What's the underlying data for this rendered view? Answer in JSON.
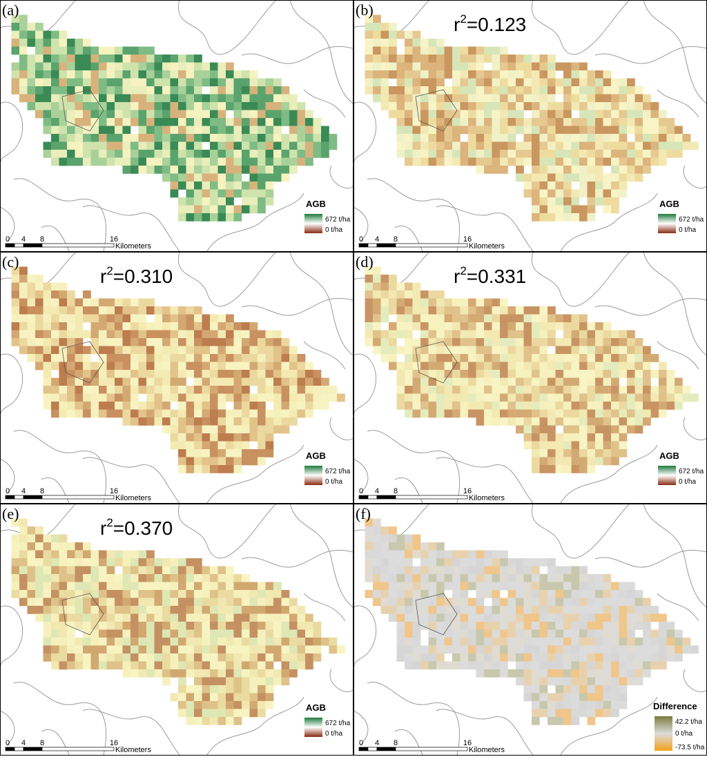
{
  "panels": [
    {
      "label": "(a)",
      "palette": [
        "#f6f3c0",
        "#e9eebb",
        "#cfe3ad",
        "#a9d19a",
        "#7fbb84",
        "#5aa36c",
        "#3a8a55",
        "#d8b27c"
      ],
      "legend": {
        "title": "AGB",
        "max": "672 t/ha",
        "min": "0 t/ha",
        "colors": [
          "#1f7a3d",
          "#ffffff",
          "#8a2a12"
        ]
      }
    },
    {
      "label": "(b)",
      "r_text": "r",
      "r_sup": "2",
      "r_value": "=0.123",
      "palette": [
        "#f8f4c6",
        "#f3e9b4",
        "#eedc9f",
        "#e6c990",
        "#dcb47c",
        "#f1f1c8",
        "#d7e6b8",
        "#c9975f"
      ],
      "legend": {
        "title": "AGB",
        "max": "672 t/ha",
        "min": "0 t/ha",
        "colors": [
          "#1f7a3d",
          "#ffffff",
          "#8a2a12"
        ]
      }
    },
    {
      "label": "(c)",
      "r_text": "r",
      "r_sup": "2",
      "r_value": "=0.310",
      "palette": [
        "#f8f4c2",
        "#f4ebb2",
        "#ecd9a0",
        "#e2c38a",
        "#d4a872",
        "#c99060",
        "#bd7d4e",
        "#f6f1bc"
      ],
      "legend": {
        "title": "AGB",
        "max": "672 t/ha",
        "min": "0 t/ha",
        "colors": [
          "#1f7a3d",
          "#ffffff",
          "#8a2a12"
        ]
      }
    },
    {
      "label": "(d)",
      "r_text": "r",
      "r_sup": "2",
      "r_value": "=0.331",
      "palette": [
        "#f8f4c4",
        "#f3e9b2",
        "#ebd9a0",
        "#e1c28b",
        "#d4aa74",
        "#c99463",
        "#e4ecbd",
        "#f6f1bd"
      ],
      "legend": {
        "title": "AGB",
        "max": "672 t/ha",
        "min": "0 t/ha",
        "colors": [
          "#1f7a3d",
          "#ffffff",
          "#8a2a12"
        ]
      }
    },
    {
      "label": "(e)",
      "r_text": "r",
      "r_sup": "2",
      "r_value": "=0.370",
      "palette": [
        "#f8f4c2",
        "#f2e8b1",
        "#eadba0",
        "#dfc289",
        "#d2a871",
        "#c59162",
        "#dde8b5",
        "#f6f1bc"
      ],
      "legend": {
        "title": "AGB",
        "max": "672 t/ha",
        "min": "0 t/ha",
        "colors": [
          "#1f7a3d",
          "#ffffff",
          "#8a2a12"
        ]
      }
    },
    {
      "label": "(f)",
      "palette": [
        "#dcdcdc",
        "#d9d9d9",
        "#e0dcd2",
        "#e8d2ae",
        "#f0c68a",
        "#c8c8ae",
        "#dcdcdc",
        "#d6d6d6"
      ],
      "legend": {
        "title": "Difference",
        "max": "42.2 t/ha",
        "mid": "0 t/ha",
        "min": "-73.5 t/ha",
        "colors": [
          "#7c7a3e",
          "#dcdcdc",
          "#f2a31a"
        ]
      }
    }
  ],
  "scale_bar": {
    "ticks": [
      "0",
      "4",
      "8",
      "16"
    ],
    "unit": "Kilometers"
  }
}
